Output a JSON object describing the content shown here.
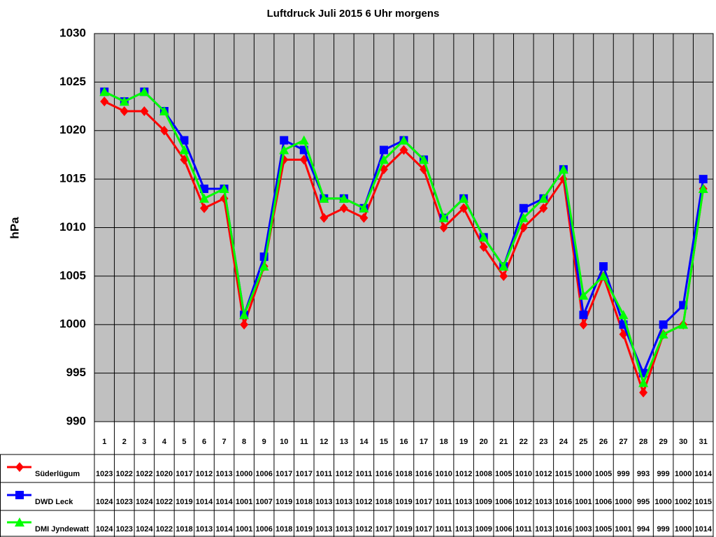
{
  "chart_data": {
    "type": "line",
    "title": "Luftdruck Juli 2015 6 Uhr morgens",
    "y_label": "hPa",
    "categories": [
      "1",
      "2",
      "3",
      "4",
      "5",
      "6",
      "7",
      "8",
      "9",
      "10",
      "11",
      "12",
      "13",
      "14",
      "15",
      "16",
      "17",
      "18",
      "19",
      "20",
      "21",
      "22",
      "23",
      "24",
      "25",
      "26",
      "27",
      "28",
      "29",
      "30",
      "31"
    ],
    "series": [
      {
        "name": "Süderlügum",
        "color": "#ff0000",
        "marker": "diamond",
        "values": [
          1023,
          1022,
          1022,
          1020,
          1017,
          1012,
          1013,
          1000,
          1006,
          1017,
          1017,
          1011,
          1012,
          1011,
          1016,
          1018,
          1016,
          1010,
          1012,
          1008,
          1005,
          1010,
          1012,
          1015,
          1000,
          1005,
          999,
          993,
          999,
          1000,
          1014
        ]
      },
      {
        "name": "DWD Leck",
        "color": "#0000ff",
        "marker": "square",
        "values": [
          1024,
          1023,
          1024,
          1022,
          1019,
          1014,
          1014,
          1001,
          1007,
          1019,
          1018,
          1013,
          1013,
          1012,
          1018,
          1019,
          1017,
          1011,
          1013,
          1009,
          1006,
          1012,
          1013,
          1016,
          1001,
          1006,
          1000,
          995,
          1000,
          1002,
          1015
        ]
      },
      {
        "name": "DMI Jyndewatt",
        "color": "#00ff00",
        "marker": "triangle",
        "values": [
          1024,
          1023,
          1024,
          1022,
          1018,
          1013,
          1014,
          1001,
          1006,
          1018,
          1019,
          1013,
          1013,
          1012,
          1017,
          1019,
          1017,
          1011,
          1013,
          1009,
          1006,
          1011,
          1013,
          1016,
          1003,
          1005,
          1001,
          994,
          999,
          1000,
          1014
        ]
      }
    ],
    "ylim": [
      990,
      1030
    ],
    "yticks": [
      990,
      995,
      1000,
      1005,
      1010,
      1015,
      1020,
      1025,
      1030
    ],
    "grid": true,
    "plot_background": "#c0c0c0"
  }
}
